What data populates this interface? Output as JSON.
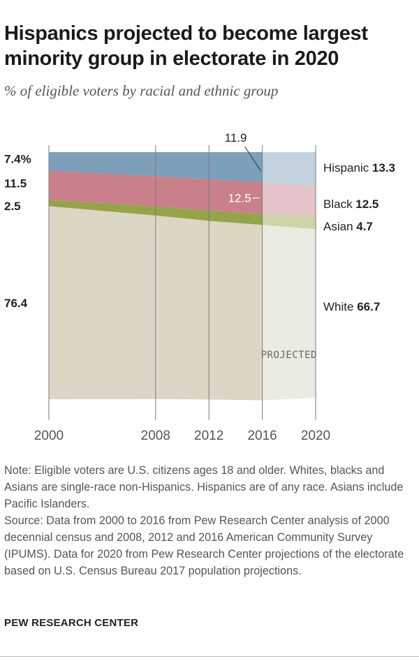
{
  "header": {
    "title": "Hispanics projected to become largest minority group in electorate in 2020",
    "subtitle": "% of eligible voters by racial and ethnic group"
  },
  "chart_data": {
    "type": "area",
    "stacked": true,
    "x": [
      2000,
      2008,
      2012,
      2016,
      2020
    ],
    "x_tick_labels": [
      "2000",
      "2008",
      "2012",
      "2016",
      "2020"
    ],
    "projected_from": 2016,
    "projected_label": "PROJECTED",
    "ylim": [
      0,
      100
    ],
    "series": [
      {
        "name": "White",
        "values": [
          76.4,
          72.6,
          70.7,
          69.4,
          66.7
        ],
        "color": "#dcd6c4",
        "projected_color": "#ebeae3"
      },
      {
        "name": "Asian",
        "values": [
          2.5,
          3.6,
          4.1,
          4.4,
          4.7
        ],
        "color": "#96a34a",
        "projected_color": "#cdd4a8"
      },
      {
        "name": "Black",
        "values": [
          11.5,
          12.0,
          12.3,
          12.5,
          12.5
        ],
        "color": "#c9808b",
        "projected_color": "#e5c4c9"
      },
      {
        "name": "Hispanic",
        "values": [
          7.4,
          9.5,
          10.8,
          11.9,
          13.3
        ],
        "color": "#7d9fba",
        "projected_color": "#c2d3df"
      }
    ],
    "start_labels": [
      {
        "series": "Hispanic",
        "text": "7.4%"
      },
      {
        "series": "Black",
        "text": "11.5"
      },
      {
        "series": "Asian",
        "text": "2.5"
      },
      {
        "series": "White",
        "text": "76.4"
      }
    ],
    "end_labels": [
      {
        "series": "Hispanic",
        "name": "Hispanic",
        "value": "13.3"
      },
      {
        "series": "Black",
        "name": "Black",
        "value": "12.5"
      },
      {
        "series": "Asian",
        "name": "Asian",
        "value": "4.7"
      },
      {
        "series": "White",
        "name": "White",
        "value": "66.7"
      }
    ],
    "annotations": [
      {
        "series": "Hispanic",
        "x": 2016,
        "text": "11.9"
      },
      {
        "series": "Black",
        "x": 2016,
        "text": "12.5"
      }
    ]
  },
  "notes": {
    "note": "Note: Eligible voters are U.S. citizens ages 18 and older. Whites, blacks and Asians are single-race non-Hispanics. Hispanics are of any race. Asians include Pacific Islanders.",
    "source": "Source: Data from 2000 to 2016 from Pew Research Center analysis of 2000 decennial census and 2008, 2012 and 2016 American Community Survey (IPUMS). Data for 2020 from Pew Research Center projections of the electorate based on U.S. Census Bureau 2017 population projections.",
    "org": "PEW RESEARCH CENTER"
  }
}
